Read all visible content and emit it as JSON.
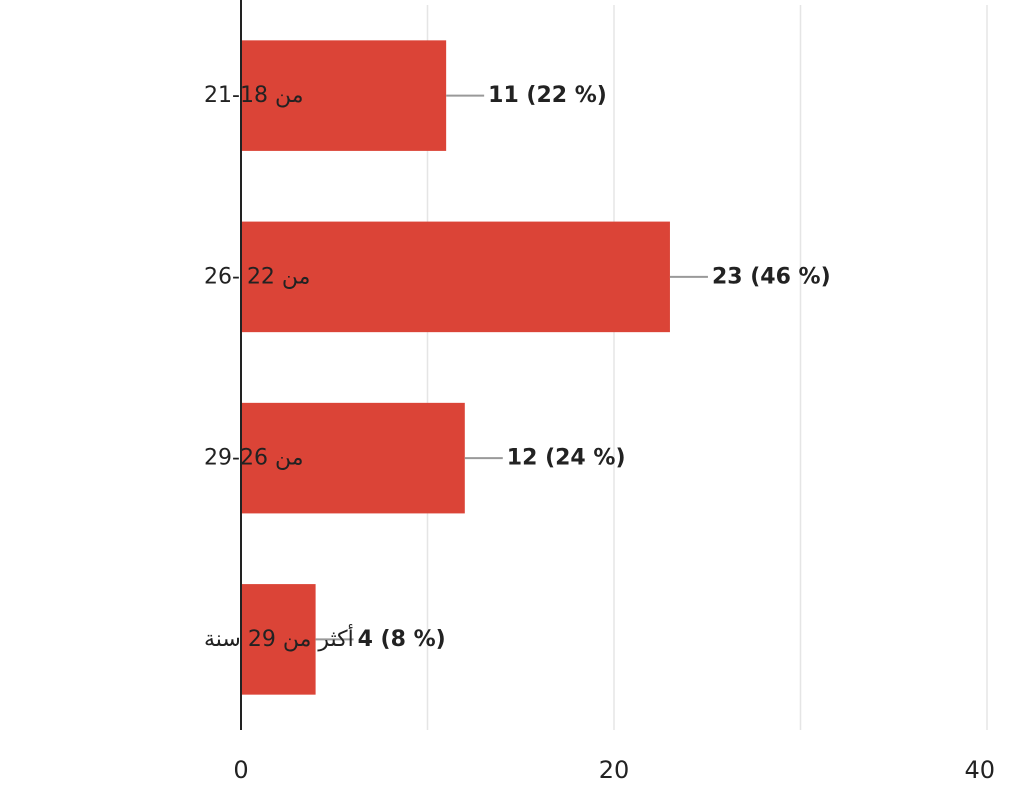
{
  "chart_data": {
    "type": "bar",
    "orientation": "horizontal",
    "categories": [
      "من 18-21",
      "من 22 -26",
      "من 26-29",
      "أكثر من 29 سنة"
    ],
    "values": [
      11,
      23,
      12,
      4
    ],
    "value_labels": [
      "11 (22 %)",
      "23 (46 %)",
      "12 (24 %)",
      "4 (8 %)"
    ],
    "xlim": [
      0,
      40
    ],
    "x_ticks": [
      0,
      20,
      40
    ],
    "x_tick_labels": [
      "0",
      "20",
      "40"
    ],
    "grid": true,
    "bar_color": "#DB4437",
    "leader_line_color": "#999999",
    "grid_color": "#e5e5e5",
    "axis_color": "#222222"
  }
}
